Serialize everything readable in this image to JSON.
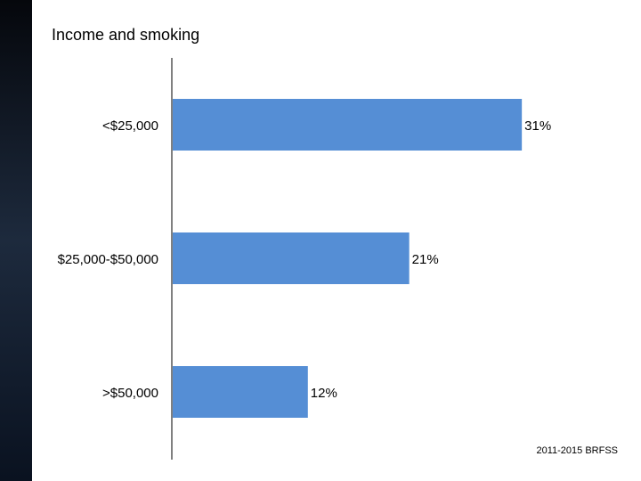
{
  "chart_data": {
    "type": "bar",
    "orientation": "horizontal",
    "title": "Income and smoking",
    "categories": [
      "<$25,000",
      "$25,000-$50,000",
      ">$50,000"
    ],
    "values": [
      31,
      21,
      12
    ],
    "value_labels": [
      "31%",
      "21%",
      "12%"
    ],
    "color": "#558ed5",
    "source": "2011-2015 BRFSS"
  }
}
